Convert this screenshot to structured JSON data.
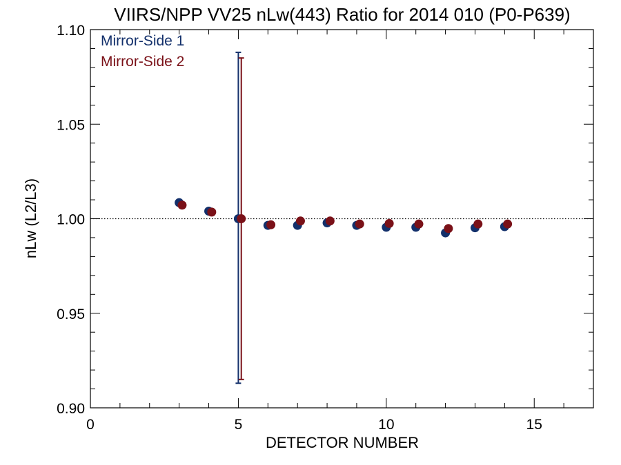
{
  "chart_data": {
    "type": "scatter",
    "title": "VIIRS/NPP VV25 nLw(443) Ratio for 2014 010 (P0-P639)",
    "xlabel": "DETECTOR NUMBER",
    "ylabel": "nLw (L2/L3)",
    "xlim": [
      0,
      17
    ],
    "ylim": [
      0.9,
      1.1
    ],
    "x_ticks": [
      0,
      5,
      10,
      15
    ],
    "y_ticks": [
      0.9,
      0.95,
      1.0,
      1.05,
      1.1
    ],
    "x_tick_labels": [
      "0",
      "5",
      "10",
      "15"
    ],
    "y_tick_labels": [
      "0.90",
      "0.95",
      "1.00",
      "1.05",
      "1.10"
    ],
    "reference_line": 1.0,
    "legend_position": "top-left",
    "series": [
      {
        "name": "Mirror-Side 1",
        "color": "#13306b",
        "x": [
          3,
          4,
          5,
          6,
          7,
          8,
          9,
          10,
          11,
          12,
          13,
          14
        ],
        "y": [
          1.0085,
          1.004,
          1.0,
          0.9965,
          0.9965,
          0.9978,
          0.9965,
          0.9955,
          0.9955,
          0.9925,
          0.9952,
          0.9958
        ],
        "error_bars": [
          {
            "x": 5,
            "low": 0.913,
            "high": 1.088
          }
        ]
      },
      {
        "name": "Mirror-Side 2",
        "color": "#7a1118",
        "x": [
          3.1,
          4.1,
          5.1,
          6.1,
          7.1,
          8.1,
          9.1,
          10.1,
          11.1,
          12.1,
          13.1,
          14.1
        ],
        "y": [
          1.0072,
          1.0035,
          1.0,
          0.9968,
          0.9988,
          0.9988,
          0.9972,
          0.9975,
          0.9972,
          0.9948,
          0.9972,
          0.9972
        ],
        "error_bars": [
          {
            "x": 5.1,
            "low": 0.915,
            "high": 1.085
          }
        ]
      }
    ]
  }
}
